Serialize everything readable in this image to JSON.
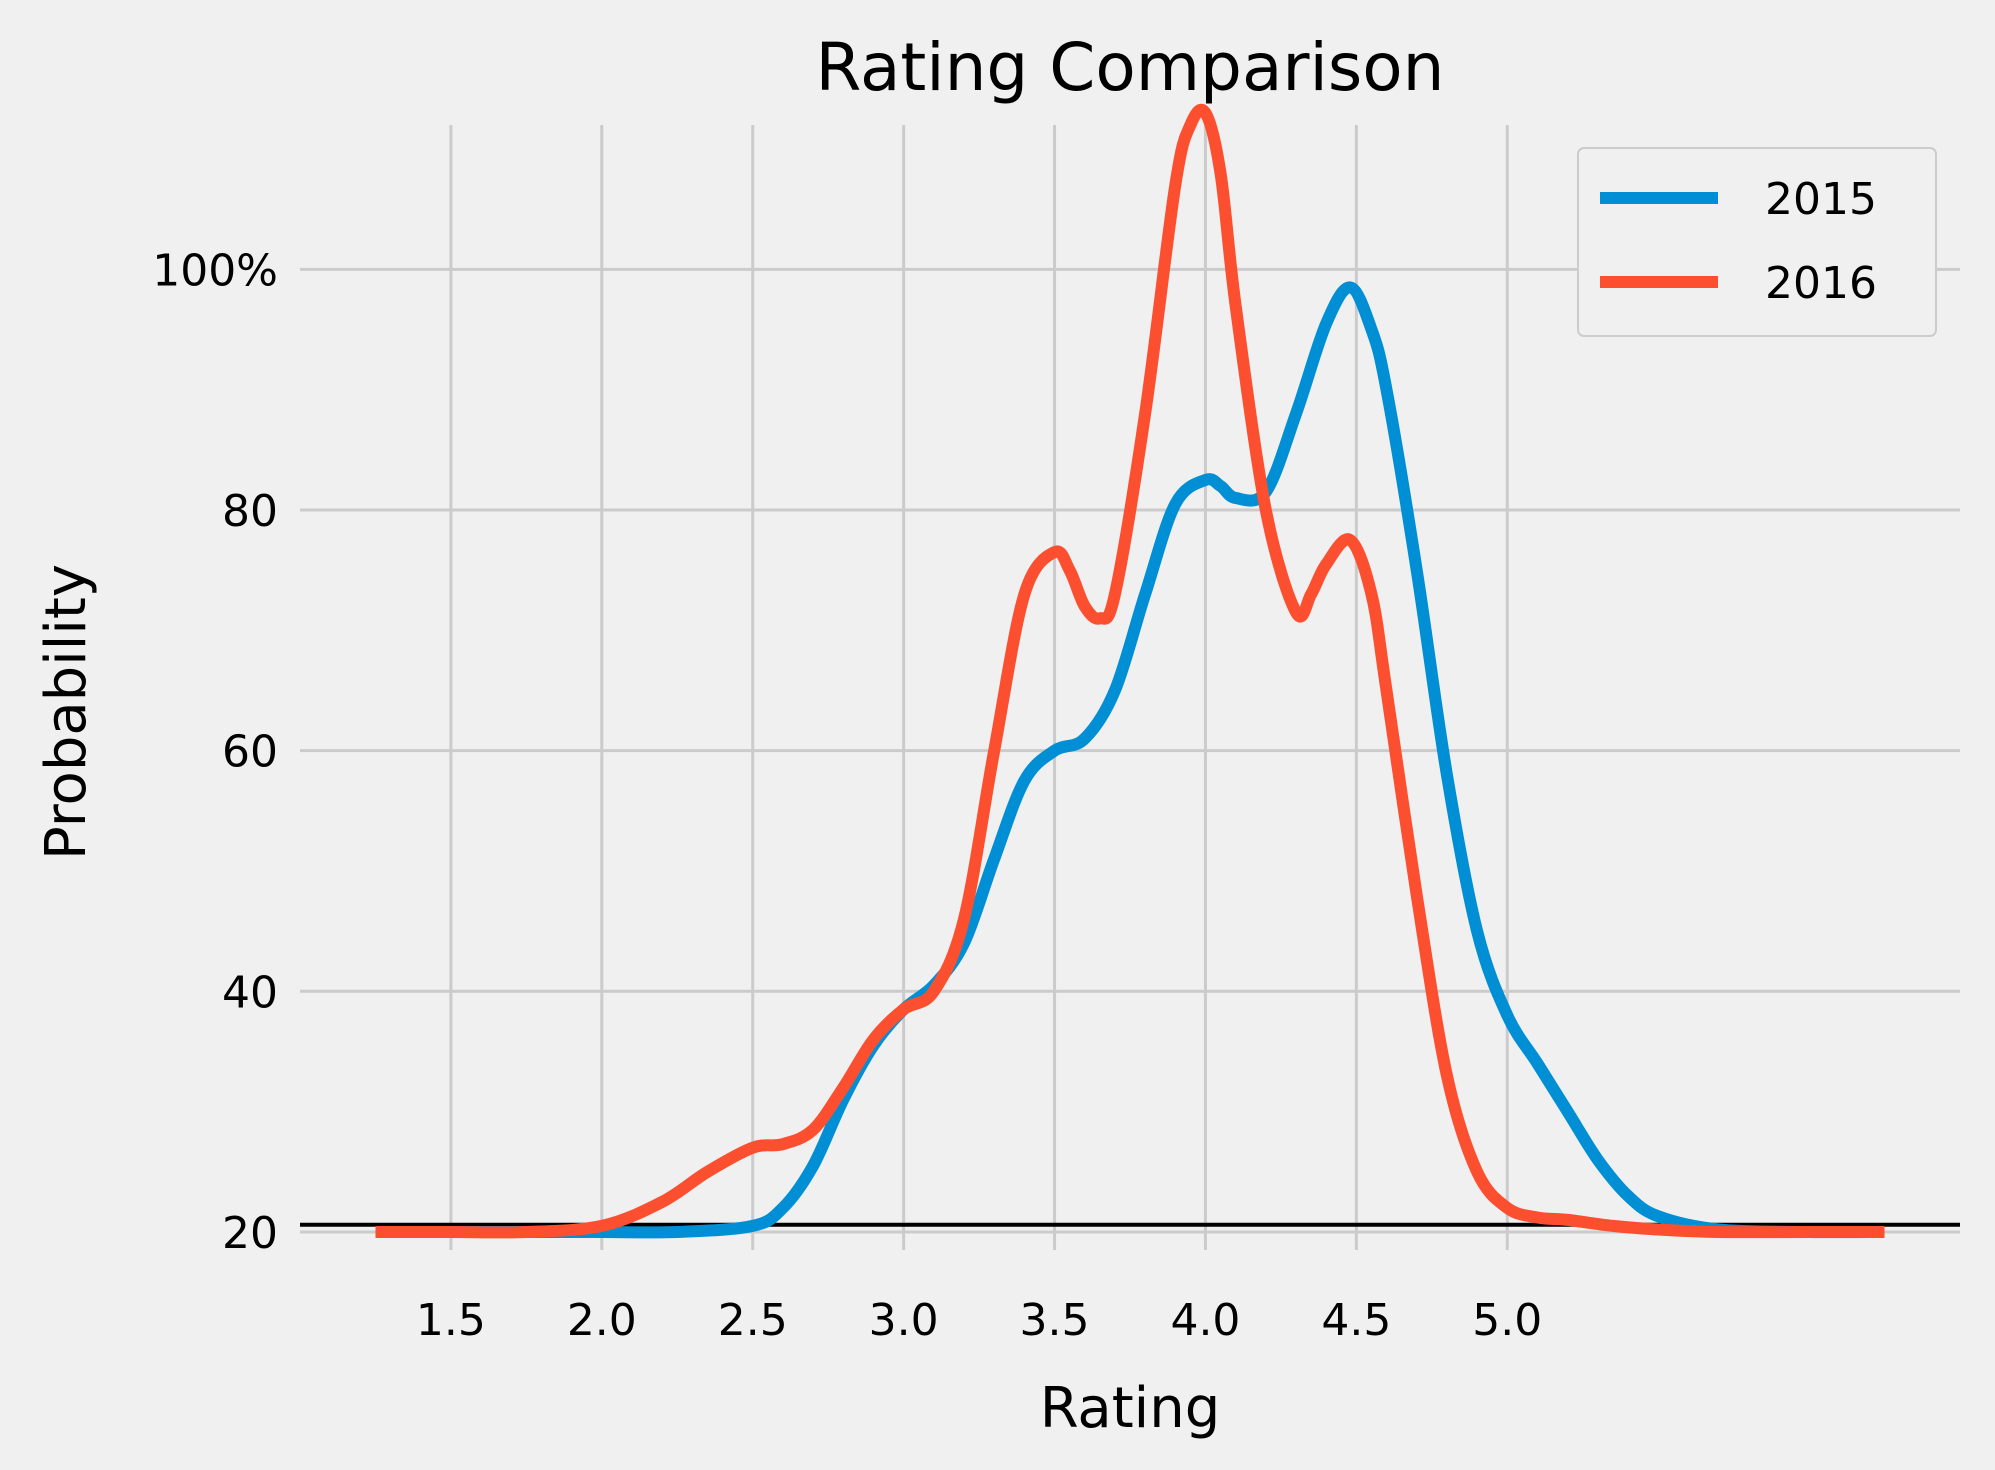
{
  "chart_data": {
    "type": "line",
    "title": "Rating Comparison",
    "xlabel": "Rating",
    "ylabel": "Probability",
    "xlim": [
      1.0,
      6.5
    ],
    "ylim": [
      18.5,
      112
    ],
    "x_ticks": [
      1.5,
      2.0,
      2.5,
      3.0,
      3.5,
      4.0,
      4.5,
      5.0
    ],
    "x_tick_labels": [
      "1.5",
      "2.0",
      "2.5",
      "3.0",
      "3.5",
      "4.0",
      "4.5",
      "5.0"
    ],
    "y_ticks": [
      20,
      40,
      60,
      80,
      100
    ],
    "y_tick_labels": [
      "20",
      "40",
      "60",
      "80",
      "100%"
    ],
    "hline_y": 20.6,
    "grid": true,
    "legend_position": "top-right",
    "series": [
      {
        "name": "2015",
        "color": "#008fd5",
        "x": [
          1.25,
          1.5,
          1.75,
          2.0,
          2.25,
          2.5,
          2.6,
          2.7,
          2.8,
          2.9,
          3.0,
          3.1,
          3.2,
          3.3,
          3.4,
          3.5,
          3.6,
          3.7,
          3.8,
          3.9,
          4.0,
          4.05,
          4.1,
          4.2,
          4.3,
          4.4,
          4.48,
          4.55,
          4.6,
          4.7,
          4.8,
          4.9,
          5.0,
          5.1,
          5.2,
          5.3,
          5.4,
          5.5,
          5.7,
          6.0,
          6.25
        ],
        "y": [
          20,
          20,
          20,
          20,
          20,
          20.5,
          22,
          25.5,
          31,
          35.5,
          38.5,
          40.5,
          44,
          51,
          57.5,
          60,
          61,
          65,
          73,
          80.5,
          82.5,
          82,
          81,
          81.5,
          88,
          95.5,
          98.5,
          95,
          90,
          75,
          58,
          45,
          38,
          34,
          30,
          26,
          23,
          21.3,
          20.2,
          20,
          20
        ]
      },
      {
        "name": "2016",
        "color": "#fc4f30",
        "x": [
          1.25,
          1.5,
          1.75,
          2.0,
          2.2,
          2.35,
          2.5,
          2.6,
          2.7,
          2.8,
          2.9,
          3.0,
          3.1,
          3.2,
          3.3,
          3.4,
          3.5,
          3.55,
          3.6,
          3.65,
          3.7,
          3.8,
          3.9,
          3.95,
          4.0,
          4.05,
          4.1,
          4.2,
          4.3,
          4.35,
          4.4,
          4.48,
          4.55,
          4.6,
          4.7,
          4.8,
          4.9,
          5.0,
          5.1,
          5.2,
          5.35,
          5.5,
          5.7,
          6.0,
          6.25
        ],
        "y": [
          20,
          20,
          20,
          20.5,
          22.5,
          25,
          27,
          27.3,
          28.5,
          32,
          36,
          38.5,
          40,
          46,
          60,
          73,
          76.5,
          75,
          72,
          71,
          73,
          88,
          107,
          112,
          113,
          108,
          97,
          80,
          71.5,
          73,
          75.5,
          77.5,
          73,
          65,
          48,
          33,
          25,
          22,
          21.2,
          21,
          20.5,
          20.2,
          20,
          20,
          20
        ]
      }
    ]
  }
}
